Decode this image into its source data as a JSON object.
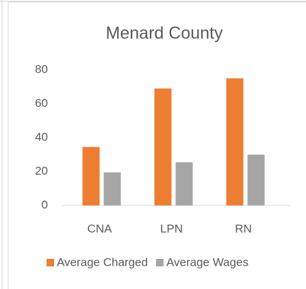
{
  "chart_data": {
    "type": "bar",
    "title": "Menard County",
    "categories": [
      "CNA",
      "LPN",
      "RN"
    ],
    "series": [
      {
        "name": "Average Charged",
        "color": "#ED7D31",
        "values": [
          34.5,
          69,
          75
        ]
      },
      {
        "name": "Average Wages",
        "color": "#A5A5A5",
        "values": [
          19.5,
          25.5,
          30
        ]
      }
    ],
    "ylim": [
      0,
      80
    ],
    "yticks": [
      0,
      20,
      40,
      60,
      80
    ],
    "grid": false,
    "legend": "bottom"
  }
}
